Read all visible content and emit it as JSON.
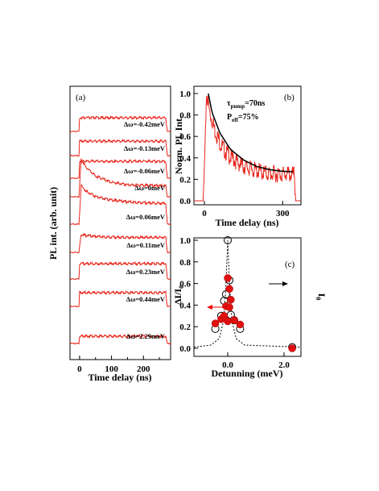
{
  "chart_data": [
    {
      "type": "line",
      "panel_label": "(a)",
      "xlabel": "Time delay (ns)",
      "ylabel": "PL int. (arb. unit)",
      "x_ticks": [
        "0",
        "100",
        "200"
      ],
      "xlim": [
        -30,
        285
      ],
      "series": [
        {
          "name": "Δω=-0.42meV",
          "values": [
            [
              -30,
              0.0
            ],
            [
              -2,
              0.0
            ],
            [
              0,
              1.0
            ],
            [
              10,
              1.0
            ],
            [
              270,
              1.0
            ],
            [
              275,
              0.0
            ],
            [
              285,
              0.0
            ]
          ]
        },
        {
          "name": "Δω=-0.13meV",
          "values": [
            [
              -30,
              0.0
            ],
            [
              -2,
              0.0
            ],
            [
              0,
              1.0
            ],
            [
              10,
              1.0
            ],
            [
              270,
              1.0
            ],
            [
              275,
              0.0
            ],
            [
              285,
              0.0
            ]
          ]
        },
        {
          "name": "Δω=-0.06meV",
          "values": [
            [
              -30,
              0.0
            ],
            [
              -2,
              0.0
            ],
            [
              0,
              1.0
            ],
            [
              10,
              1.0
            ],
            [
              270,
              1.0
            ],
            [
              275,
              0.0
            ],
            [
              285,
              0.0
            ]
          ]
        },
        {
          "name": "Δω=0meV",
          "values": [
            [
              -30,
              0.0
            ],
            [
              -2,
              0.0
            ],
            [
              5,
              1.0
            ],
            [
              20,
              0.78
            ],
            [
              50,
              0.55
            ],
            [
              100,
              0.38
            ],
            [
              150,
              0.32
            ],
            [
              200,
              0.3
            ],
            [
              270,
              0.29
            ],
            [
              275,
              0.0
            ],
            [
              285,
              0.0
            ]
          ]
        },
        {
          "name": "Δω=0.06meV",
          "values": [
            [
              -30,
              0.0
            ],
            [
              -2,
              0.0
            ],
            [
              5,
              1.0
            ],
            [
              20,
              0.85
            ],
            [
              50,
              0.72
            ],
            [
              100,
              0.62
            ],
            [
              150,
              0.58
            ],
            [
              200,
              0.55
            ],
            [
              270,
              0.54
            ],
            [
              275,
              0.0
            ],
            [
              285,
              0.0
            ]
          ]
        },
        {
          "name": "Δω=0.11meV",
          "values": [
            [
              -30,
              0.0
            ],
            [
              -2,
              0.0
            ],
            [
              5,
              1.0
            ],
            [
              20,
              0.95
            ],
            [
              50,
              0.9
            ],
            [
              100,
              0.85
            ],
            [
              270,
              0.84
            ],
            [
              275,
              0.0
            ],
            [
              285,
              0.0
            ]
          ]
        },
        {
          "name": "Δω=0.23meV",
          "values": [
            [
              -30,
              0.0
            ],
            [
              -2,
              0.0
            ],
            [
              0,
              1.0
            ],
            [
              10,
              1.0
            ],
            [
              270,
              1.0
            ],
            [
              275,
              0.0
            ],
            [
              285,
              0.0
            ]
          ]
        },
        {
          "name": "Δω=0.44meV",
          "values": [
            [
              -30,
              0.0
            ],
            [
              -2,
              0.0
            ],
            [
              0,
              1.0
            ],
            [
              10,
              1.0
            ],
            [
              270,
              1.0
            ],
            [
              275,
              0.0
            ],
            [
              285,
              0.0
            ]
          ]
        },
        {
          "name": "Δω=2.29meV",
          "values": [
            [
              -30,
              0.0
            ],
            [
              -2,
              0.0
            ],
            [
              0,
              1.0
            ],
            [
              10,
              1.0
            ],
            [
              270,
              1.0
            ],
            [
              275,
              0.0
            ],
            [
              285,
              0.0
            ]
          ]
        }
      ]
    },
    {
      "type": "line",
      "panel_label": "(b)",
      "xlabel": "Time delay (ns)",
      "ylabel": "Norm. PL Int.",
      "annotations": [
        "τpump=70ns",
        "Peff=75%"
      ],
      "x_ticks": [
        "0",
        "300"
      ],
      "y_ticks": [
        "0.0",
        "0.2",
        "0.4",
        "0.6",
        "0.8",
        "1.0"
      ],
      "xlim": [
        -40,
        370
      ],
      "ylim": [
        0,
        1.05
      ],
      "series": [
        {
          "name": "data",
          "values": [
            [
              -40,
              0.0
            ],
            [
              -5,
              0.0
            ],
            [
              0,
              0.3
            ],
            [
              8,
              1.02
            ],
            [
              20,
              0.85
            ],
            [
              40,
              0.68
            ],
            [
              60,
              0.56
            ],
            [
              80,
              0.48
            ],
            [
              100,
              0.43
            ],
            [
              130,
              0.37
            ],
            [
              160,
              0.33
            ],
            [
              200,
              0.3
            ],
            [
              250,
              0.27
            ],
            [
              300,
              0.27
            ],
            [
              345,
              0.26
            ],
            [
              350,
              0.0
            ],
            [
              370,
              0.0
            ]
          ]
        },
        {
          "name": "fit",
          "values": [
            [
              15,
              1.0
            ],
            [
              30,
              0.82
            ],
            [
              60,
              0.63
            ],
            [
              100,
              0.48
            ],
            [
              150,
              0.38
            ],
            [
              200,
              0.32
            ],
            [
              250,
              0.29
            ],
            [
              300,
              0.275
            ],
            [
              340,
              0.27
            ]
          ]
        }
      ]
    },
    {
      "type": "scatter",
      "panel_label": "(c)",
      "xlabel": "Detunning (meV)",
      "ylabel": "ΔI/I0",
      "y2label": "I0",
      "x_ticks": [
        "0.0",
        "2.0"
      ],
      "y_ticks": [
        "0.0",
        "0.2",
        "0.4",
        "0.6",
        "0.8",
        "1.0"
      ],
      "xlim": [
        -1.2,
        2.6
      ],
      "ylim": [
        -0.02,
        1.05
      ],
      "series": [
        {
          "name": "ΔI/I0",
          "values": [
            [
              -0.44,
              0.23
            ],
            [
              -0.23,
              0.27
            ],
            [
              -0.13,
              0.3
            ],
            [
              -0.06,
              0.39
            ],
            [
              0.0,
              0.25
            ],
            [
              0.06,
              0.38
            ],
            [
              0.0,
              0.65
            ],
            [
              0.06,
              0.55
            ],
            [
              0.11,
              0.45
            ],
            [
              0.23,
              0.26
            ],
            [
              0.44,
              0.22
            ],
            [
              2.29,
              0.0
            ]
          ]
        },
        {
          "name": "I0",
          "values": [
            [
              -0.44,
              0.18
            ],
            [
              -0.23,
              0.3
            ],
            [
              -0.13,
              0.44
            ],
            [
              -0.06,
              0.5
            ],
            [
              0.0,
              1.0
            ],
            [
              0.06,
              0.63
            ],
            [
              0.11,
              0.31
            ],
            [
              0.23,
              0.26
            ],
            [
              0.44,
              0.18
            ],
            [
              2.29,
              0.01
            ]
          ]
        },
        {
          "name": "Lorentzian fit",
          "values": [
            [
              -1.2,
              0.01
            ],
            [
              -0.6,
              0.03
            ],
            [
              -0.3,
              0.09
            ],
            [
              -0.15,
              0.25
            ],
            [
              -0.07,
              0.55
            ],
            [
              0.0,
              1.0
            ],
            [
              0.07,
              0.55
            ],
            [
              0.15,
              0.25
            ],
            [
              0.3,
              0.09
            ],
            [
              0.6,
              0.03
            ],
            [
              2.6,
              0.01
            ]
          ]
        }
      ]
    }
  ]
}
